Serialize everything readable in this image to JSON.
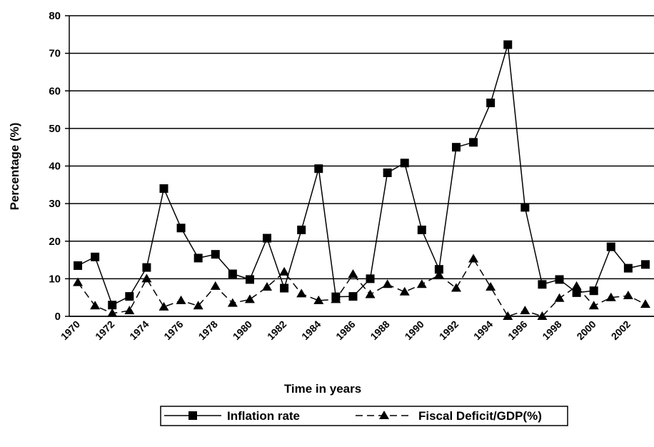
{
  "chart_data": {
    "type": "line",
    "x_label": "Time in years",
    "y_label": "Percentage (%)",
    "categories": [
      "1970",
      null,
      "1972",
      null,
      "1974",
      null,
      "1976",
      null,
      "1978",
      null,
      "1980",
      null,
      "1982",
      null,
      "1984",
      null,
      "1986",
      null,
      "1988",
      null,
      "1990",
      null,
      "1992",
      null,
      "1994",
      null,
      "1996",
      null,
      "1998",
      null,
      "2000",
      null,
      "2002",
      null
    ],
    "series": [
      {
        "name": "Inflation rate",
        "color": "#000000",
        "dash": false,
        "marker": "square",
        "values": [
          13.5,
          15.8,
          3,
          5.3,
          13,
          34,
          23.5,
          15.5,
          16.5,
          11.3,
          9.8,
          20.8,
          7.5,
          23,
          39.3,
          5.2,
          5.3,
          10,
          38.2,
          40.8,
          23,
          12.5,
          45,
          46.3,
          56.8,
          72.3,
          29,
          8.5,
          9.8,
          6.3,
          6.8,
          18.5,
          12.8,
          13.8
        ]
      },
      {
        "name": "Fiscal Deficit/GDP(%)",
        "color": "#000000",
        "dash": true,
        "marker": "triangle",
        "values": [
          9,
          2.8,
          0.8,
          1.5,
          10,
          2.5,
          4.2,
          2.8,
          8,
          3.5,
          4.5,
          7.8,
          11.8,
          6,
          4.2,
          4.5,
          11.2,
          5.8,
          8.5,
          6.5,
          8.5,
          11,
          7.5,
          15.3,
          7.8,
          0,
          1.5,
          0,
          4.8,
          8,
          2.8,
          5,
          5.5,
          3.2
        ]
      }
    ],
    "ylim": [
      0,
      80
    ],
    "yticks": [
      0,
      10,
      20,
      30,
      40,
      50,
      60,
      70,
      80
    ],
    "grid": true,
    "legend": "bottom"
  }
}
